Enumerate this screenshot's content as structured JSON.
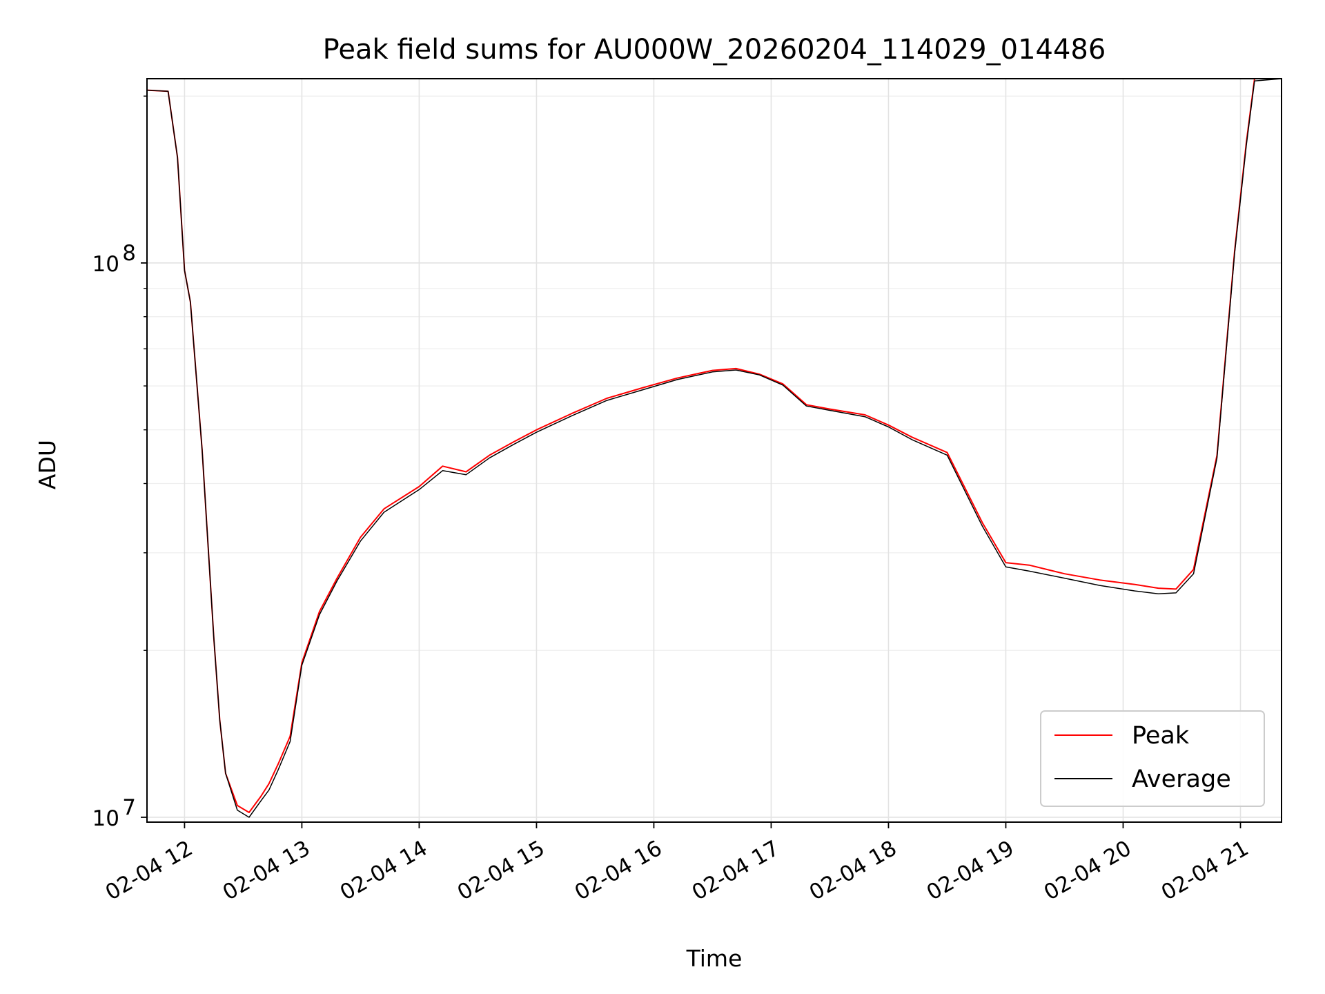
{
  "chart_data": {
    "type": "line",
    "title": "Peak field sums for AU000W_20260204_114029_014486",
    "xlabel": "Time",
    "ylabel": "ADU",
    "x_unit": "hours of day (2026-02-04)",
    "xlim": [
      11.68,
      21.35
    ],
    "ylim": [
      9800000,
      215000000
    ],
    "yscale": "log",
    "grid": true,
    "legend": "lower-right",
    "x_ticks": [
      {
        "value": 12,
        "label": "02-04 12"
      },
      {
        "value": 13,
        "label": "02-04 13"
      },
      {
        "value": 14,
        "label": "02-04 14"
      },
      {
        "value": 15,
        "label": "02-04 15"
      },
      {
        "value": 16,
        "label": "02-04 16"
      },
      {
        "value": 17,
        "label": "02-04 17"
      },
      {
        "value": 18,
        "label": "02-04 18"
      },
      {
        "value": 19,
        "label": "02-04 19"
      },
      {
        "value": 20,
        "label": "02-04 20"
      },
      {
        "value": 21,
        "label": "02-04 21"
      }
    ],
    "y_ticks": [
      {
        "value": 10000000,
        "base": "10",
        "exp": "7"
      },
      {
        "value": 100000000,
        "base": "10",
        "exp": "8"
      }
    ],
    "x": [
      11.68,
      11.86,
      11.94,
      12.0,
      12.05,
      12.15,
      12.25,
      12.3,
      12.35,
      12.45,
      12.55,
      12.65,
      12.72,
      12.8,
      12.9,
      13.0,
      13.15,
      13.3,
      13.5,
      13.7,
      14.0,
      14.2,
      14.4,
      14.6,
      14.8,
      15.0,
      15.3,
      15.6,
      15.9,
      16.2,
      16.5,
      16.7,
      16.9,
      17.1,
      17.3,
      17.5,
      17.8,
      18.0,
      18.2,
      18.5,
      18.8,
      19.0,
      19.2,
      19.5,
      19.8,
      20.1,
      20.3,
      20.45,
      20.6,
      20.8,
      20.95,
      21.05,
      21.12,
      21.35
    ],
    "series": [
      {
        "name": "Peak",
        "color": "#ff0000",
        "values": [
          205000000,
          204000000,
          155000000,
          97000000,
          85000000,
          46000000,
          21000000,
          15000000,
          12000000,
          10500000,
          10200000,
          10900000,
          11500000,
          12500000,
          14000000,
          19000000,
          23500000,
          27000000,
          32000000,
          36000000,
          39500000,
          43000000,
          42000000,
          45000000,
          47500000,
          50000000,
          53500000,
          57000000,
          59500000,
          62000000,
          64000000,
          64500000,
          63000000,
          60500000,
          55500000,
          54500000,
          53200000,
          51000000,
          48500000,
          45500000,
          34000000,
          28800000,
          28500000,
          27500000,
          26800000,
          26300000,
          25900000,
          25800000,
          28000000,
          45000000,
          105000000,
          165000000,
          215000000,
          215000000
        ]
      },
      {
        "name": "Average",
        "color": "#000000",
        "values": [
          205000000,
          204000000,
          155000000,
          97000000,
          85000000,
          46000000,
          21000000,
          15000000,
          12000000,
          10300000,
          10000000,
          10700000,
          11200000,
          12200000,
          13700000,
          18800000,
          23200000,
          26700000,
          31500000,
          35500000,
          39000000,
          42200000,
          41500000,
          44500000,
          47000000,
          49500000,
          53000000,
          56500000,
          59000000,
          61600000,
          63600000,
          64100000,
          62800000,
          60200000,
          55200000,
          54200000,
          52800000,
          50600000,
          48000000,
          45000000,
          33500000,
          28300000,
          27800000,
          27000000,
          26200000,
          25600000,
          25300000,
          25400000,
          27500000,
          44500000,
          104000000,
          163000000,
          213000000,
          215000000
        ]
      }
    ]
  }
}
